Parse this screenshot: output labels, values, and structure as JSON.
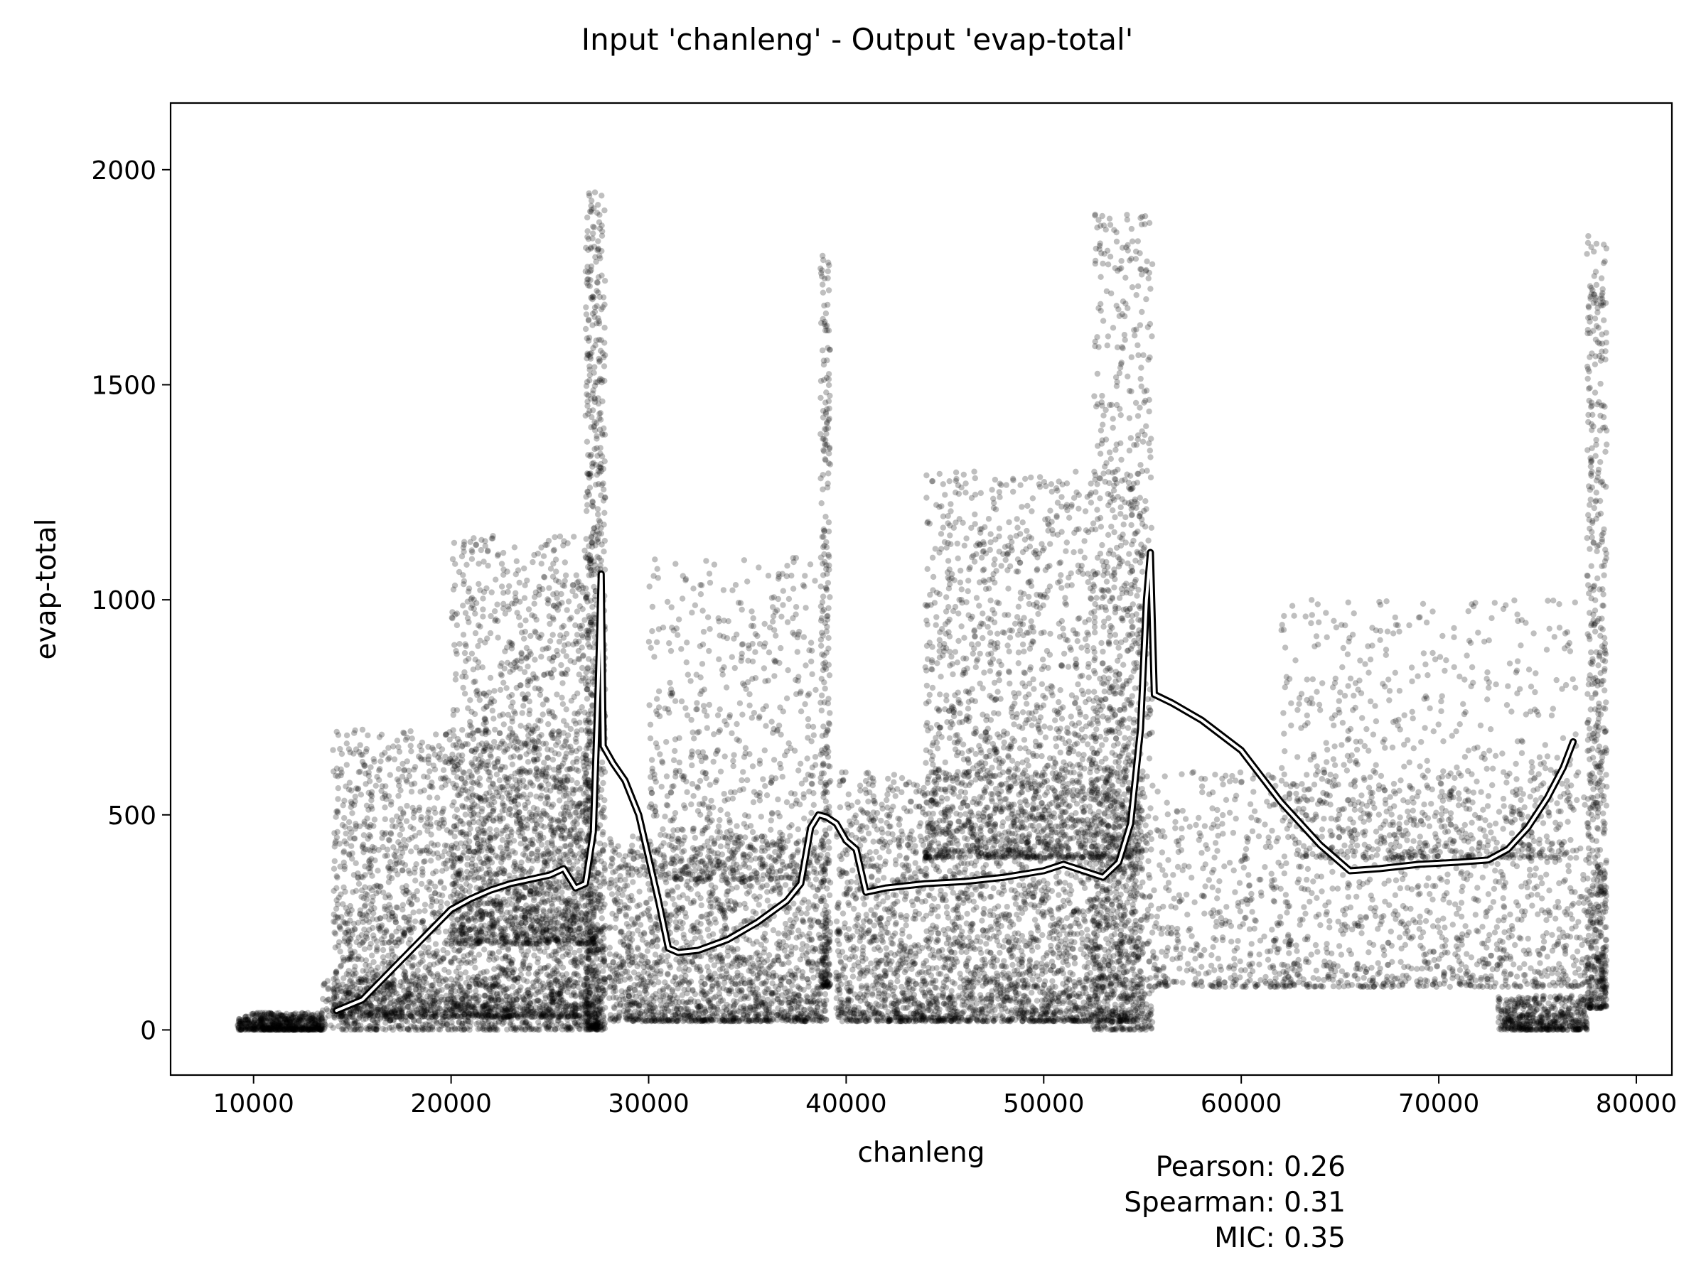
{
  "chart_data": {
    "type": "scatter",
    "title": "Input 'chanleng' - Output 'evap-total'",
    "xlabel": "chanleng",
    "ylabel": "evap-total",
    "xlim": [
      5800,
      81800
    ],
    "ylim": [
      -105,
      2155
    ],
    "xticks": [
      10000,
      20000,
      30000,
      40000,
      50000,
      60000,
      70000,
      80000
    ],
    "yticks": [
      0,
      500,
      1000,
      1500,
      2000
    ],
    "grid": false,
    "point_color": "#000000",
    "point_alpha": 0.25,
    "trend_color_outer": "#000000",
    "trend_color_inner": "#ffffff",
    "clusters": [
      {
        "x": [
          9200,
          13500
        ],
        "y": [
          0,
          40
        ],
        "n": 600
      },
      {
        "x": [
          13500,
          27500
        ],
        "y": [
          0,
          120
        ],
        "n": 700
      },
      {
        "x": [
          14000,
          27000
        ],
        "y": [
          30,
          700
        ],
        "n": 2600
      },
      {
        "x": [
          20000,
          27300
        ],
        "y": [
          200,
          1150
        ],
        "n": 1600
      },
      {
        "x": [
          26800,
          27800
        ],
        "y": [
          0,
          1950
        ],
        "n": 900
      },
      {
        "x": [
          28000,
          39000
        ],
        "y": [
          20,
          450
        ],
        "n": 1800
      },
      {
        "x": [
          30000,
          38500
        ],
        "y": [
          350,
          1100
        ],
        "n": 700
      },
      {
        "x": [
          38700,
          39200
        ],
        "y": [
          100,
          1800
        ],
        "n": 350
      },
      {
        "x": [
          39500,
          55000
        ],
        "y": [
          20,
          600
        ],
        "n": 3000
      },
      {
        "x": [
          44000,
          55000
        ],
        "y": [
          400,
          1300
        ],
        "n": 1800
      },
      {
        "x": [
          52500,
          55500
        ],
        "y": [
          0,
          1900
        ],
        "n": 900
      },
      {
        "x": [
          55500,
          78500
        ],
        "y": [
          100,
          600
        ],
        "n": 1500
      },
      {
        "x": [
          62000,
          77000
        ],
        "y": [
          400,
          1000
        ],
        "n": 700
      },
      {
        "x": [
          73000,
          77500
        ],
        "y": [
          0,
          80
        ],
        "n": 500
      },
      {
        "x": [
          77500,
          78500
        ],
        "y": [
          50,
          1850
        ],
        "n": 600
      }
    ],
    "trend": {
      "x": [
        14200,
        15500,
        17000,
        18500,
        20000,
        21000,
        22000,
        23000,
        24000,
        25000,
        25700,
        26300,
        26800,
        27200,
        27450,
        27600,
        27700,
        28200,
        28800,
        29500,
        30000,
        30500,
        31000,
        31500,
        32500,
        34000,
        35500,
        37000,
        37700,
        38200,
        38600,
        39000,
        39500,
        40000,
        40500,
        41000,
        42000,
        44000,
        46000,
        48000,
        50000,
        51000,
        52000,
        53000,
        53800,
        54400,
        54900,
        55200,
        55400,
        55600,
        56500,
        58000,
        60000,
        62000,
        64000,
        65500,
        67000,
        69000,
        71000,
        72500,
        73500,
        74500,
        75500,
        76300,
        76800
      ],
      "y": [
        45,
        70,
        140,
        210,
        280,
        305,
        325,
        340,
        350,
        360,
        375,
        330,
        340,
        460,
        800,
        1060,
        660,
        620,
        580,
        500,
        400,
        300,
        190,
        180,
        185,
        210,
        250,
        300,
        340,
        470,
        500,
        495,
        480,
        440,
        420,
        320,
        330,
        340,
        345,
        355,
        370,
        385,
        370,
        355,
        390,
        480,
        700,
        1000,
        1110,
        780,
        760,
        720,
        650,
        530,
        430,
        370,
        375,
        385,
        390,
        395,
        420,
        470,
        540,
        610,
        670
      ]
    },
    "stats": {
      "pearson": "Pearson: 0.26",
      "spearman": "Spearman: 0.31",
      "mic": "MIC: 0.35"
    }
  }
}
